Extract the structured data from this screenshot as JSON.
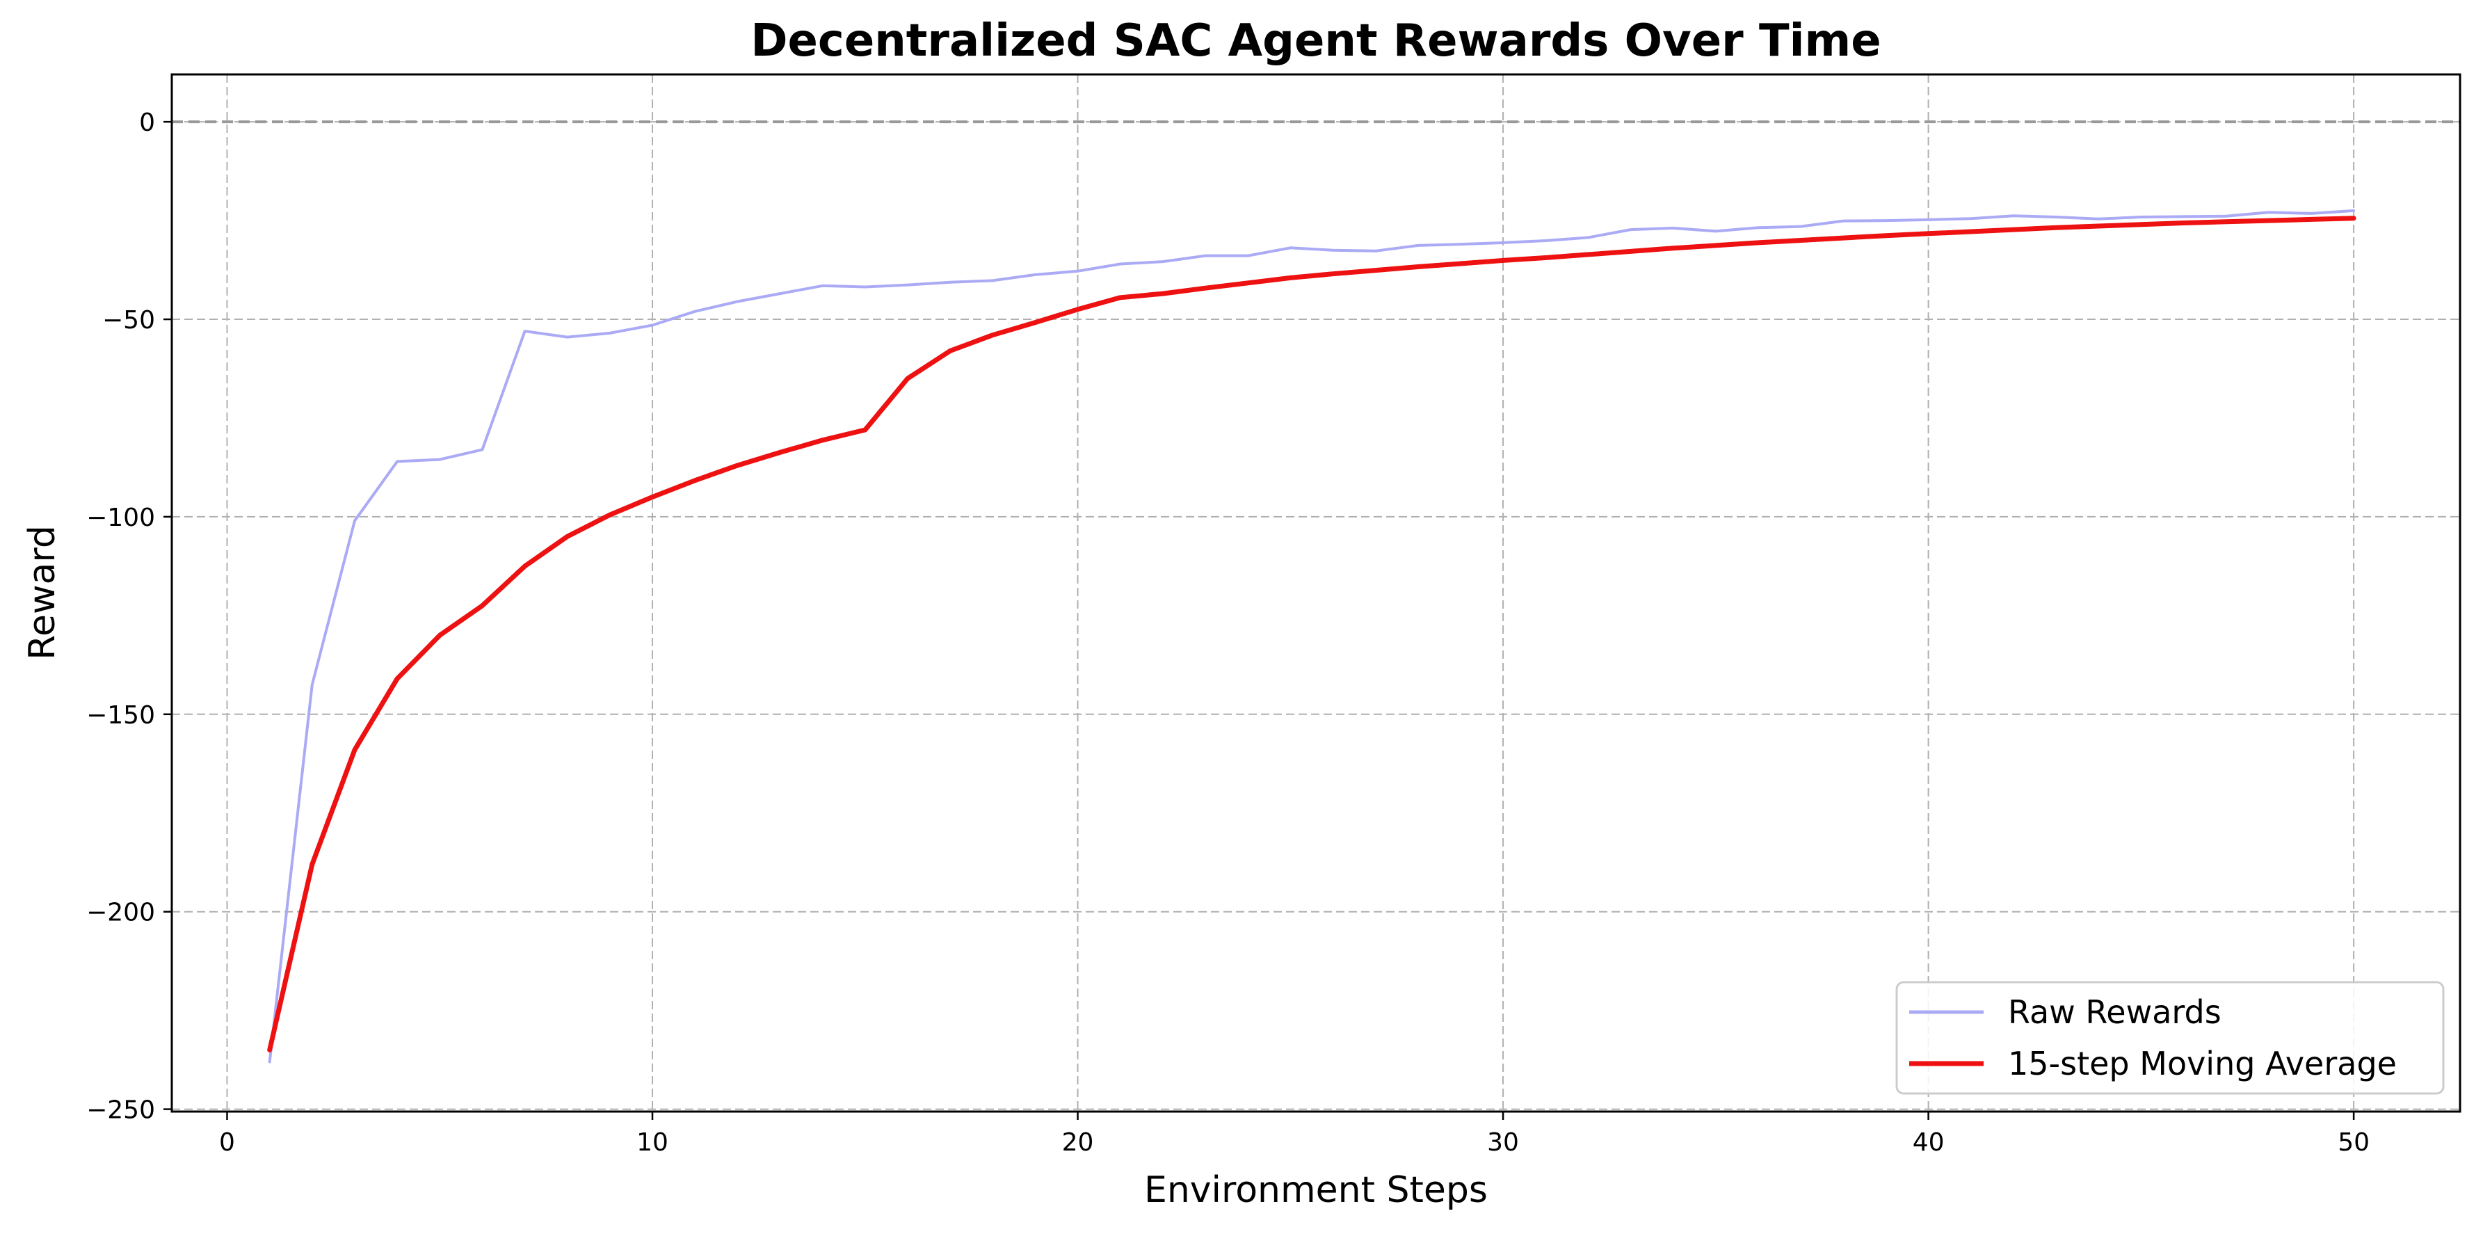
{
  "chart_data": {
    "type": "line",
    "title": "Decentralized SAC Agent Rewards Over Time",
    "xlabel": "Environment Steps",
    "ylabel": "Reward",
    "xlim": [
      -1.3,
      52.5
    ],
    "ylim": [
      -250.6,
      12
    ],
    "xticks": [
      0,
      10,
      20,
      30,
      40,
      50
    ],
    "yticks": [
      0,
      -50,
      -100,
      -150,
      -200,
      -250
    ],
    "xtick_labels": [
      "0",
      "10",
      "20",
      "30",
      "40",
      "50"
    ],
    "ytick_labels": [
      "0",
      "−50",
      "−100",
      "−150",
      "−200",
      "−250"
    ],
    "grid": true,
    "legend_position": "lower-right",
    "reference_line": {
      "y": 0,
      "color": "#999999",
      "style": "dashed"
    },
    "x": [
      1,
      2,
      3,
      4,
      5,
      6,
      7,
      8,
      9,
      10,
      11,
      12,
      13,
      14,
      15,
      16,
      17,
      18,
      19,
      20,
      21,
      22,
      23,
      24,
      25,
      26,
      27,
      28,
      29,
      30,
      31,
      32,
      33,
      34,
      35,
      36,
      37,
      38,
      39,
      40,
      41,
      42,
      43,
      44,
      45,
      46,
      47,
      48,
      49,
      50
    ],
    "series": [
      {
        "name": "Raw Rewards",
        "color": "#aaaaf5",
        "values": [
          -238.0,
          -142.5,
          -101.0,
          -86.0,
          -85.5,
          -83.0,
          -53.0,
          -54.5,
          -53.5,
          -51.5,
          -48.0,
          -45.5,
          -43.5,
          -41.5,
          -41.8,
          -41.3,
          -40.6,
          -40.2,
          -38.7,
          -37.8,
          -36.0,
          -35.4,
          -33.9,
          -33.9,
          -31.9,
          -32.5,
          -32.7,
          -31.3,
          -31.0,
          -30.6,
          -30.1,
          -29.3,
          -27.3,
          -26.9,
          -27.7,
          -26.8,
          -26.5,
          -25.1,
          -25.0,
          -24.8,
          -24.5,
          -23.8,
          -24.1,
          -24.6,
          -24.1,
          -24.0,
          -23.9,
          -22.9,
          -23.2,
          -22.5
        ]
      },
      {
        "name": "15-step Moving Average",
        "color": "#ee1111",
        "values": [
          -235.0,
          -188.0,
          -159.0,
          -141.0,
          -130.0,
          -122.5,
          -112.5,
          -105.0,
          -99.5,
          -95.0,
          -90.8,
          -87.0,
          -83.7,
          -80.6,
          -78.0,
          -65.0,
          -58.0,
          -54.0,
          -50.8,
          -47.5,
          -44.5,
          -43.5,
          -42.1,
          -40.8,
          -39.5,
          -38.5,
          -37.6,
          -36.7,
          -35.9,
          -35.1,
          -34.4,
          -33.6,
          -32.8,
          -32.0,
          -31.3,
          -30.6,
          -30.0,
          -29.4,
          -28.8,
          -28.3,
          -27.8,
          -27.3,
          -26.8,
          -26.4,
          -26.0,
          -25.6,
          -25.3,
          -25.0,
          -24.7,
          -24.4
        ]
      }
    ]
  }
}
